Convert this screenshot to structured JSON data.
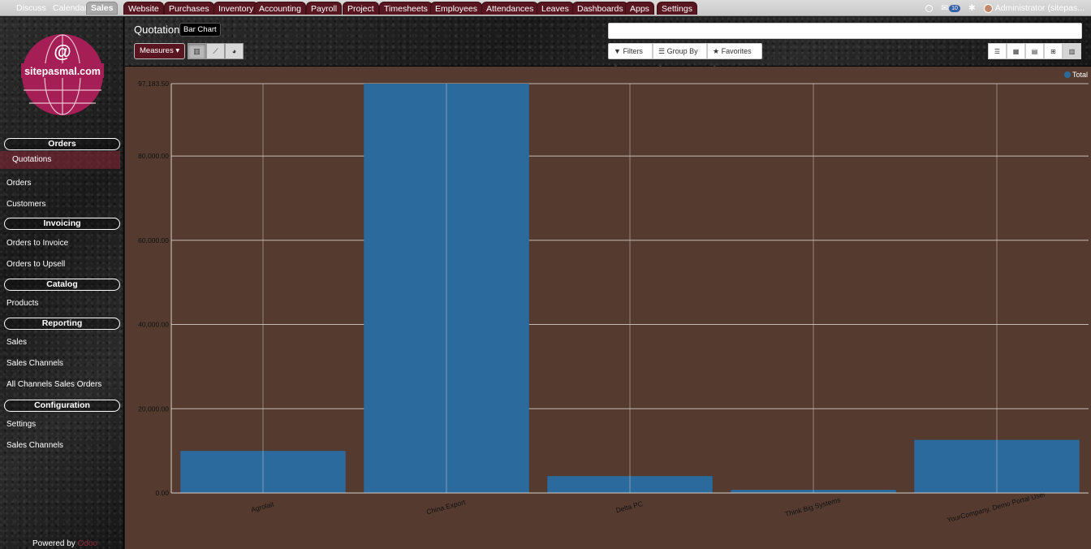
{
  "topbar": {
    "items": [
      {
        "label": "Discuss",
        "style": "plain"
      },
      {
        "label": "Calendar",
        "style": "plain"
      },
      {
        "label": "Sales",
        "style": "active"
      },
      {
        "label": "Website",
        "style": "tab"
      },
      {
        "label": "Purchases",
        "style": "tab"
      },
      {
        "label": "Inventory",
        "style": "tab"
      },
      {
        "label": "Accounting",
        "style": "tab"
      },
      {
        "label": "Payroll",
        "style": "tab"
      },
      {
        "label": "Project",
        "style": "tab"
      },
      {
        "label": "Timesheets",
        "style": "tab"
      },
      {
        "label": "Employees",
        "style": "tab"
      },
      {
        "label": "Attendances",
        "style": "tab"
      },
      {
        "label": "Leaves",
        "style": "tab"
      },
      {
        "label": "Dashboards",
        "style": "tab"
      },
      {
        "label": "Apps",
        "style": "tab"
      },
      {
        "label": "Settings",
        "style": "tab"
      }
    ],
    "messages_count": "10",
    "user_label": "Administrator (sitepas..."
  },
  "logo": {
    "text": "sitepasmal.com",
    "symbol": "@"
  },
  "sidebar": {
    "sections": [
      {
        "title": "Orders",
        "items": [
          {
            "label": "Quotations",
            "selected": true
          },
          {
            "label": "Orders"
          },
          {
            "label": "Customers"
          }
        ]
      },
      {
        "title": "Invoicing",
        "items": [
          {
            "label": "Orders to Invoice"
          },
          {
            "label": "Orders to Upsell"
          }
        ]
      },
      {
        "title": "Catalog",
        "items": [
          {
            "label": "Products"
          }
        ]
      },
      {
        "title": "Reporting",
        "items": [
          {
            "label": "Sales"
          },
          {
            "label": "Sales Channels"
          },
          {
            "label": "All Channels Sales Orders"
          }
        ]
      },
      {
        "title": "Configuration",
        "items": [
          {
            "label": "Settings"
          },
          {
            "label": "Sales Channels"
          }
        ]
      }
    ],
    "powered_prefix": "Powered by",
    "powered_brand": "Odoo"
  },
  "control": {
    "breadcrumb": "Quotation",
    "tooltip": "Bar Chart",
    "measures_label": "Measures",
    "filters_label": "Filters",
    "groupby_label": "Group By",
    "favorites_label": "Favorites",
    "search_value": ""
  },
  "chart_data": {
    "type": "bar",
    "categories": [
      "Agrolait",
      "China Export",
      "Delta PC",
      "Think Big Systems",
      "YourCompany, Demo Portal User"
    ],
    "series": [
      {
        "name": "Total",
        "values": [
          10000,
          97183.5,
          4000,
          750,
          12600
        ],
        "color": "#2b6a9c"
      }
    ],
    "ylim": [
      0,
      97183.5
    ],
    "yticks": [
      "0.00",
      "20,000.00",
      "40,000.00",
      "60,000.00",
      "80,000.00",
      "97,183.50"
    ],
    "ytick_values": [
      0,
      20000,
      40000,
      60000,
      80000,
      97183.5
    ],
    "grid": true,
    "legend": "top-right",
    "background": "#553b2f"
  },
  "colors": {
    "accent": "#5a1620",
    "bar": "#2b6a9c"
  }
}
